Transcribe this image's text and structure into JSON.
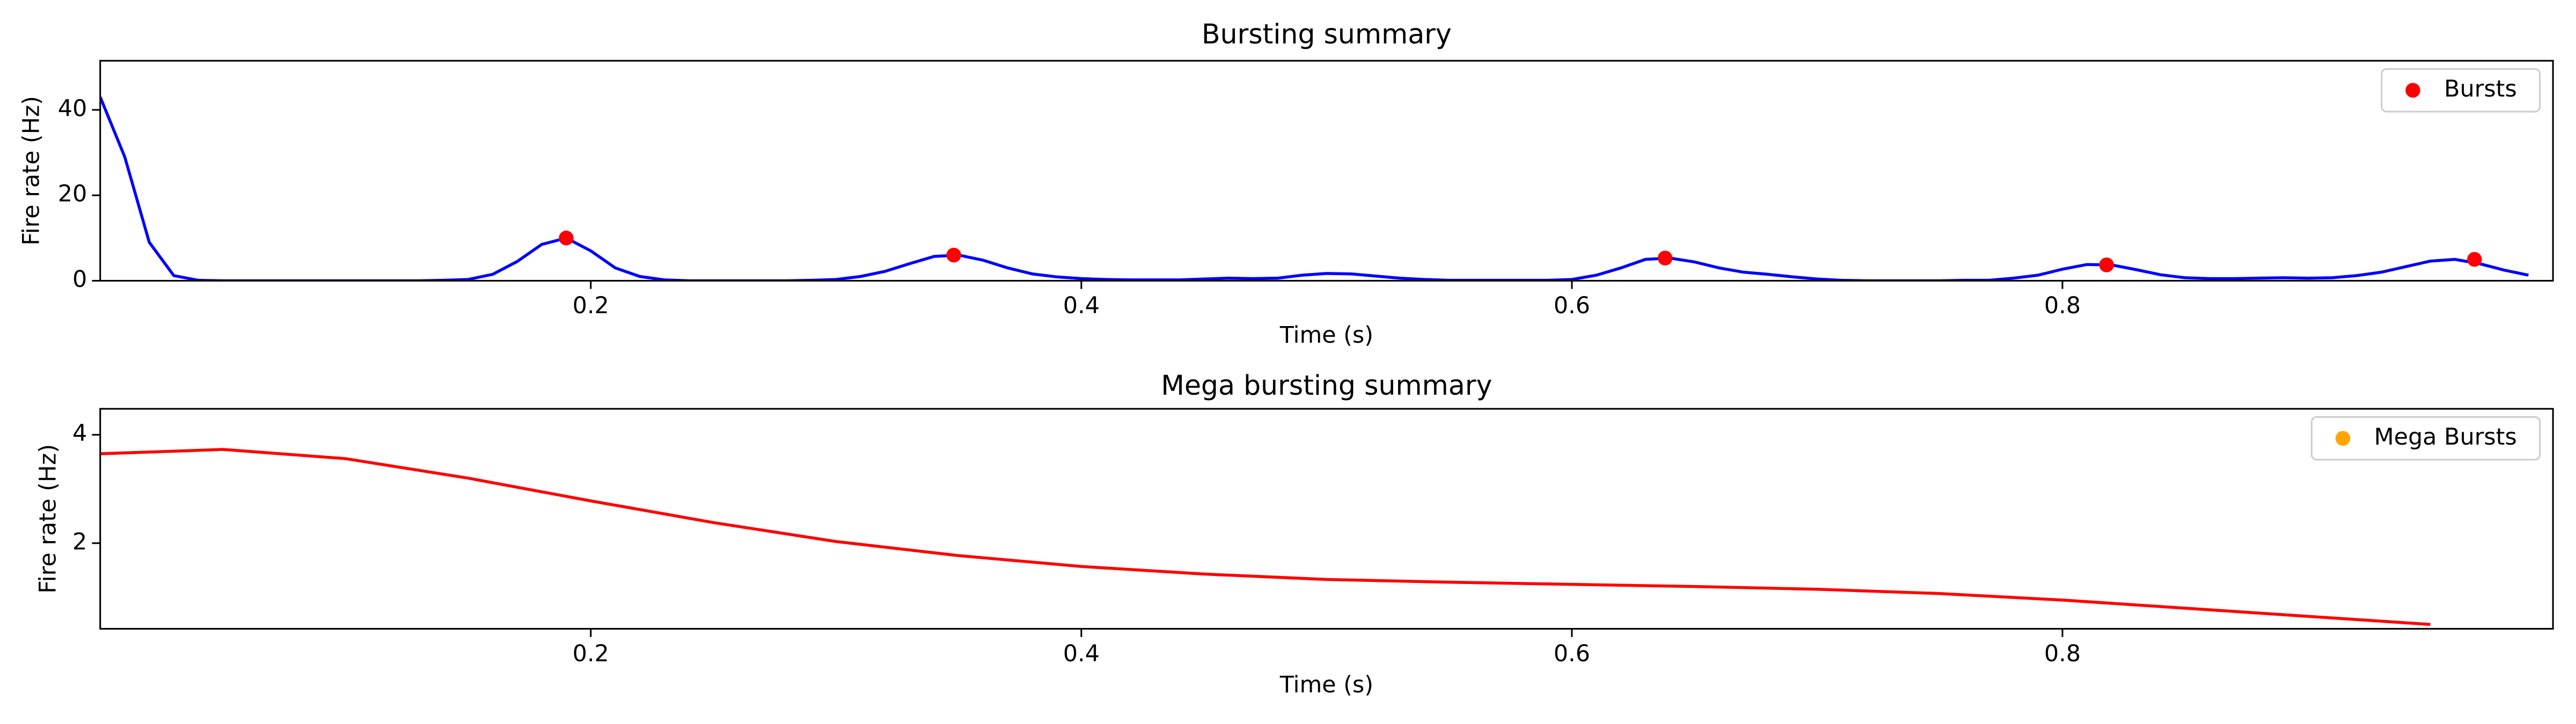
{
  "chart_data": [
    {
      "type": "line",
      "title": "Bursting summary",
      "xlabel": "Time (s)",
      "ylabel": "Fire rate (Hz)",
      "xlim": [
        0,
        1.0
      ],
      "ylim": [
        0,
        51.5
      ],
      "xticks": [
        0.2,
        0.4,
        0.6,
        0.8
      ],
      "yticks": [
        0,
        20,
        40
      ],
      "legend": "upper right",
      "series": [
        {
          "type": "line",
          "color": "#0000ff",
          "x": [
            0,
            0.01,
            0.02,
            0.03,
            0.04,
            0.05,
            0.06,
            0.07,
            0.08,
            0.09,
            0.1,
            0.11,
            0.12,
            0.13,
            0.14,
            0.15,
            0.16,
            0.17,
            0.18,
            0.19,
            0.2,
            0.21,
            0.22,
            0.23,
            0.24,
            0.25,
            0.26,
            0.27,
            0.28,
            0.29,
            0.3,
            0.31,
            0.32,
            0.33,
            0.34,
            0.35,
            0.36,
            0.37,
            0.38,
            0.39,
            0.4,
            0.41,
            0.42,
            0.43,
            0.44,
            0.45,
            0.46,
            0.47,
            0.48,
            0.49,
            0.5,
            0.51,
            0.52,
            0.53,
            0.54,
            0.55,
            0.56,
            0.57,
            0.58,
            0.59,
            0.6,
            0.61,
            0.62,
            0.63,
            0.64,
            0.65,
            0.66,
            0.67,
            0.68,
            0.69,
            0.7,
            0.71,
            0.72,
            0.73,
            0.74,
            0.75,
            0.76,
            0.77,
            0.78,
            0.79,
            0.8,
            0.81,
            0.82,
            0.83,
            0.84,
            0.85,
            0.86,
            0.87,
            0.88,
            0.89,
            0.9,
            0.91,
            0.92,
            0.93,
            0.94,
            0.95,
            0.96,
            0.97,
            0.98,
            0.99
          ],
          "values": [
            43,
            29,
            9,
            1.2,
            0.1,
            0,
            0,
            0,
            0,
            0,
            0,
            0,
            0,
            0,
            0.1,
            0.3,
            1.5,
            4.5,
            8.5,
            10,
            7,
            3,
            1,
            0.2,
            0,
            0,
            0,
            0,
            0,
            0.1,
            0.3,
            1,
            2.2,
            4,
            5.7,
            6,
            4.8,
            3,
            1.6,
            0.9,
            0.5,
            0.3,
            0.2,
            0.2,
            0.2,
            0.4,
            0.6,
            0.5,
            0.6,
            1.3,
            1.7,
            1.6,
            1.1,
            0.6,
            0.3,
            0.1,
            0.1,
            0.1,
            0.1,
            0.1,
            0.3,
            1.3,
            3,
            5,
            5.3,
            4.4,
            3,
            2,
            1.5,
            0.9,
            0.4,
            0.1,
            0,
            0,
            0,
            0,
            0.1,
            0.1,
            0.6,
            1.3,
            2.7,
            3.8,
            3.7,
            2.6,
            1.4,
            0.7,
            0.5,
            0.5,
            0.6,
            0.7,
            0.6,
            0.7,
            1.2,
            2,
            3.3,
            4.6,
            5,
            4,
            2.5,
            1.3
          ]
        },
        {
          "type": "scatter",
          "name": "Bursts",
          "color": "#ff0000",
          "x": [
            0.19,
            0.348,
            0.638,
            0.818,
            0.968
          ],
          "values": [
            10,
            6,
            5.3,
            3.7,
            5
          ]
        }
      ]
    },
    {
      "type": "line",
      "title": "Mega bursting summary",
      "xlabel": "Time (s)",
      "ylabel": "Fire rate (Hz)",
      "xlim": [
        0,
        1.0
      ],
      "ylim": [
        0.42,
        4.48
      ],
      "xticks": [
        0.2,
        0.4,
        0.6,
        0.8
      ],
      "yticks": [
        2,
        4
      ],
      "legend": "upper right",
      "series": [
        {
          "type": "line",
          "color": "#ff0000",
          "x": [
            0,
            0.05,
            0.1,
            0.15,
            0.2,
            0.25,
            0.3,
            0.35,
            0.4,
            0.45,
            0.5,
            0.55,
            0.6,
            0.65,
            0.7,
            0.75,
            0.8,
            0.85,
            0.9,
            0.95
          ],
          "values": [
            3.65,
            3.73,
            3.56,
            3.2,
            2.78,
            2.38,
            2.03,
            1.77,
            1.57,
            1.43,
            1.33,
            1.28,
            1.24,
            1.2,
            1.15,
            1.07,
            0.95,
            0.8,
            0.65,
            0.5
          ]
        },
        {
          "type": "scatter",
          "name": "Mega Bursts",
          "color": "#ffa500",
          "x": [],
          "values": []
        }
      ]
    }
  ]
}
